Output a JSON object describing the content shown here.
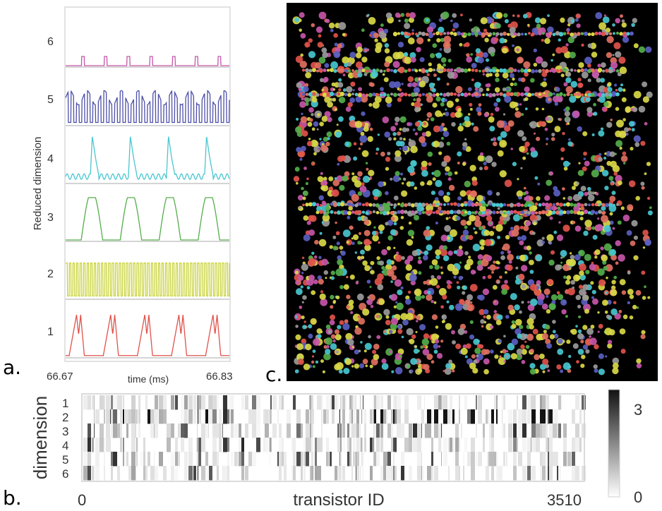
{
  "panel_a": {
    "letter": "a.",
    "ylabel": "Reduced dimension",
    "xlabel": "time (ms)",
    "x_start": "66.67",
    "x_end": "66.83",
    "trace_labels": [
      "1",
      "2",
      "3",
      "4",
      "5",
      "6"
    ],
    "colors": [
      "#e0524a",
      "#c9d33a",
      "#54ad4a",
      "#48c6cf",
      "#4d4fa8",
      "#c556a8"
    ]
  },
  "panel_b": {
    "letter": "b.",
    "ylabel": "dimension",
    "xlabel": "transistor ID",
    "x_start": "0",
    "x_end": "3510",
    "row_labels": [
      "1",
      "2",
      "3",
      "4",
      "5",
      "6"
    ],
    "colorbar_max": "3",
    "colorbar_min": "0"
  },
  "panel_c": {
    "letter": "c.",
    "dot_colors": [
      "#e0524a",
      "#d9d845",
      "#54ad4a",
      "#48c6cf",
      "#5a5ec0",
      "#c556a8",
      "#e07060",
      "#9a9a9a"
    ]
  },
  "chart_data": [
    {
      "type": "line",
      "title": "",
      "xlabel": "time (ms)",
      "ylabel": "Reduced dimension",
      "xlim": [
        66.67,
        66.83
      ],
      "series": [
        {
          "name": "1",
          "values": []
        },
        {
          "name": "2",
          "values": []
        },
        {
          "name": "3",
          "values": []
        },
        {
          "name": "4",
          "values": []
        },
        {
          "name": "5",
          "values": []
        },
        {
          "name": "6",
          "values": []
        }
      ]
    },
    {
      "type": "heatmap",
      "xlabel": "transistor ID",
      "ylabel": "dimension",
      "xlim": [
        0,
        3510
      ],
      "rows": [
        "1",
        "2",
        "3",
        "4",
        "5",
        "6"
      ],
      "value_range": [
        0,
        3
      ]
    },
    {
      "type": "scatter",
      "title": ""
    }
  ]
}
